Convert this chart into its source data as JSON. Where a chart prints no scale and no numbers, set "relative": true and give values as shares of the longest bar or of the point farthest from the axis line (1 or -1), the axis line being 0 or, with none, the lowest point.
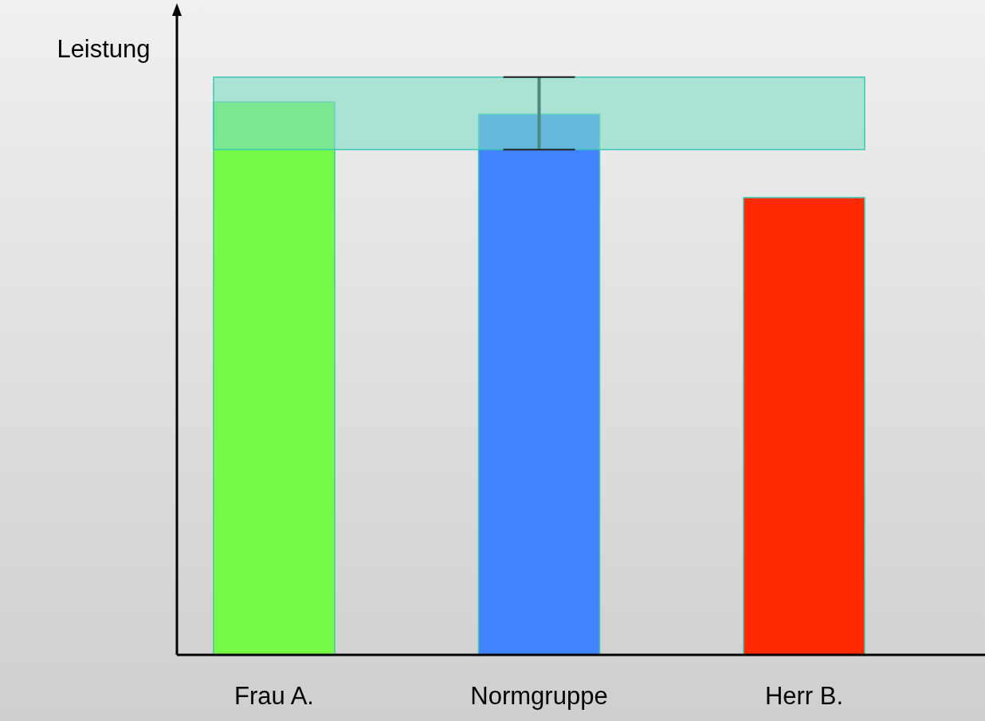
{
  "chart_data": {
    "type": "bar",
    "relative": true,
    "ylabel": "Leistung",
    "categories": [
      "Frau A.",
      "Normgruppe",
      "Herr B."
    ],
    "values": [
      1,
      0.978,
      0.827
    ],
    "colors": [
      "#76fa45",
      "#4282ff",
      "#ff2a00"
    ],
    "bands": [
      {
        "axis": "y",
        "from": 0.914,
        "to": 1.045,
        "color": "#7fdcc4"
      }
    ]
  }
}
